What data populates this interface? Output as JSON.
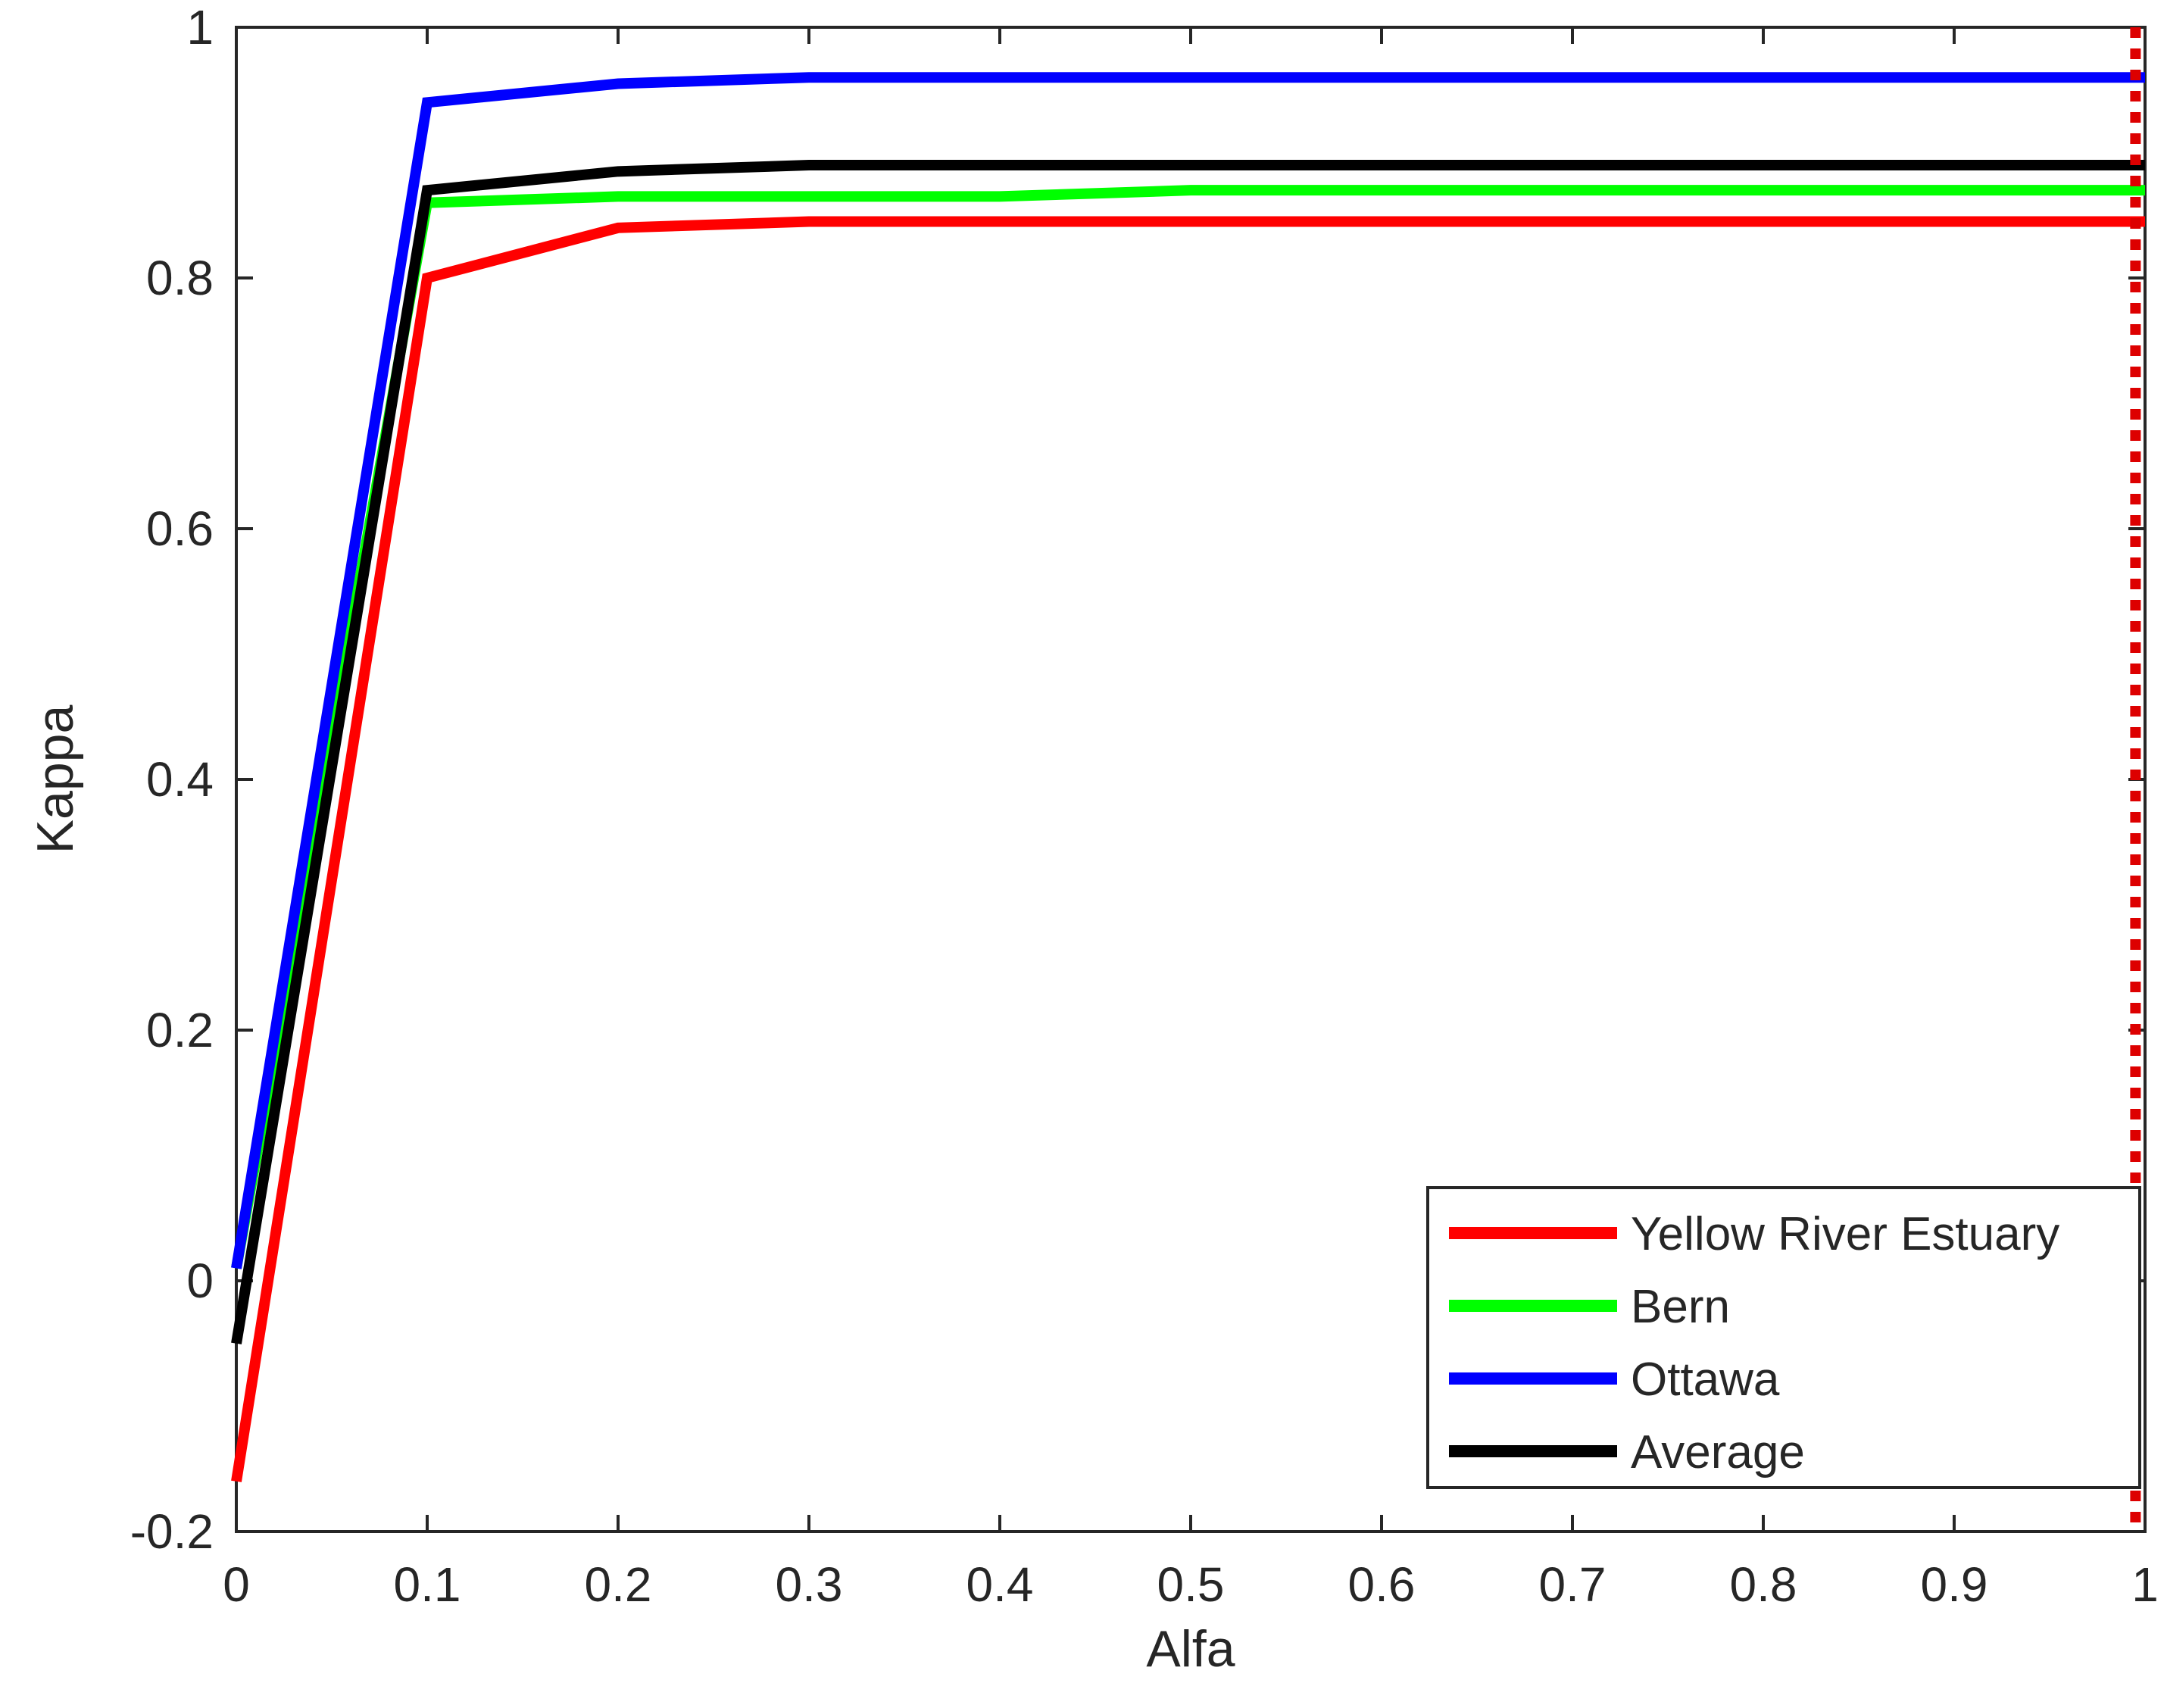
{
  "chart_data": {
    "type": "line",
    "title": "",
    "xlabel": "Alfa",
    "ylabel": "Kappa",
    "xlim": [
      0,
      1
    ],
    "ylim": [
      -0.2,
      1
    ],
    "xticks": [
      0,
      0.1,
      0.2,
      0.3,
      0.4,
      0.5,
      0.6,
      0.7,
      0.8,
      0.9,
      1
    ],
    "xtick_labels": [
      "0",
      "0.1",
      "0.2",
      "0.3",
      "0.4",
      "0.5",
      "0.6",
      "0.7",
      "0.8",
      "0.9",
      "1"
    ],
    "yticks": [
      -0.2,
      0,
      0.2,
      0.4,
      0.6,
      0.8,
      1
    ],
    "ytick_labels": [
      "-0.2",
      "0",
      "0.2",
      "0.4",
      "0.6",
      "0.8",
      "1"
    ],
    "grid": false,
    "legend_position": "bottom-right",
    "x": [
      0,
      0.1,
      0.2,
      0.3,
      0.4,
      0.5,
      0.6,
      0.7,
      0.8,
      0.9,
      1
    ],
    "series": [
      {
        "name": "Yellow River Estuary",
        "color": "#ff0000",
        "values": [
          -0.16,
          0.8,
          0.84,
          0.845,
          0.845,
          0.845,
          0.845,
          0.845,
          0.845,
          0.845,
          0.845
        ]
      },
      {
        "name": "Bern",
        "color": "#00ff00",
        "values": [
          0.01,
          0.86,
          0.865,
          0.865,
          0.865,
          0.87,
          0.87,
          0.87,
          0.87,
          0.87,
          0.87
        ]
      },
      {
        "name": "Ottawa",
        "color": "#0000ff",
        "values": [
          0.01,
          0.94,
          0.955,
          0.96,
          0.96,
          0.96,
          0.96,
          0.96,
          0.96,
          0.96,
          0.96
        ]
      },
      {
        "name": "Average",
        "color": "#000000",
        "values": [
          -0.05,
          0.87,
          0.885,
          0.89,
          0.89,
          0.89,
          0.89,
          0.89,
          0.89,
          0.89,
          0.89
        ]
      }
    ],
    "reference_line": {
      "style": "dotted",
      "color": "#dd0000",
      "x": 0.995
    }
  }
}
